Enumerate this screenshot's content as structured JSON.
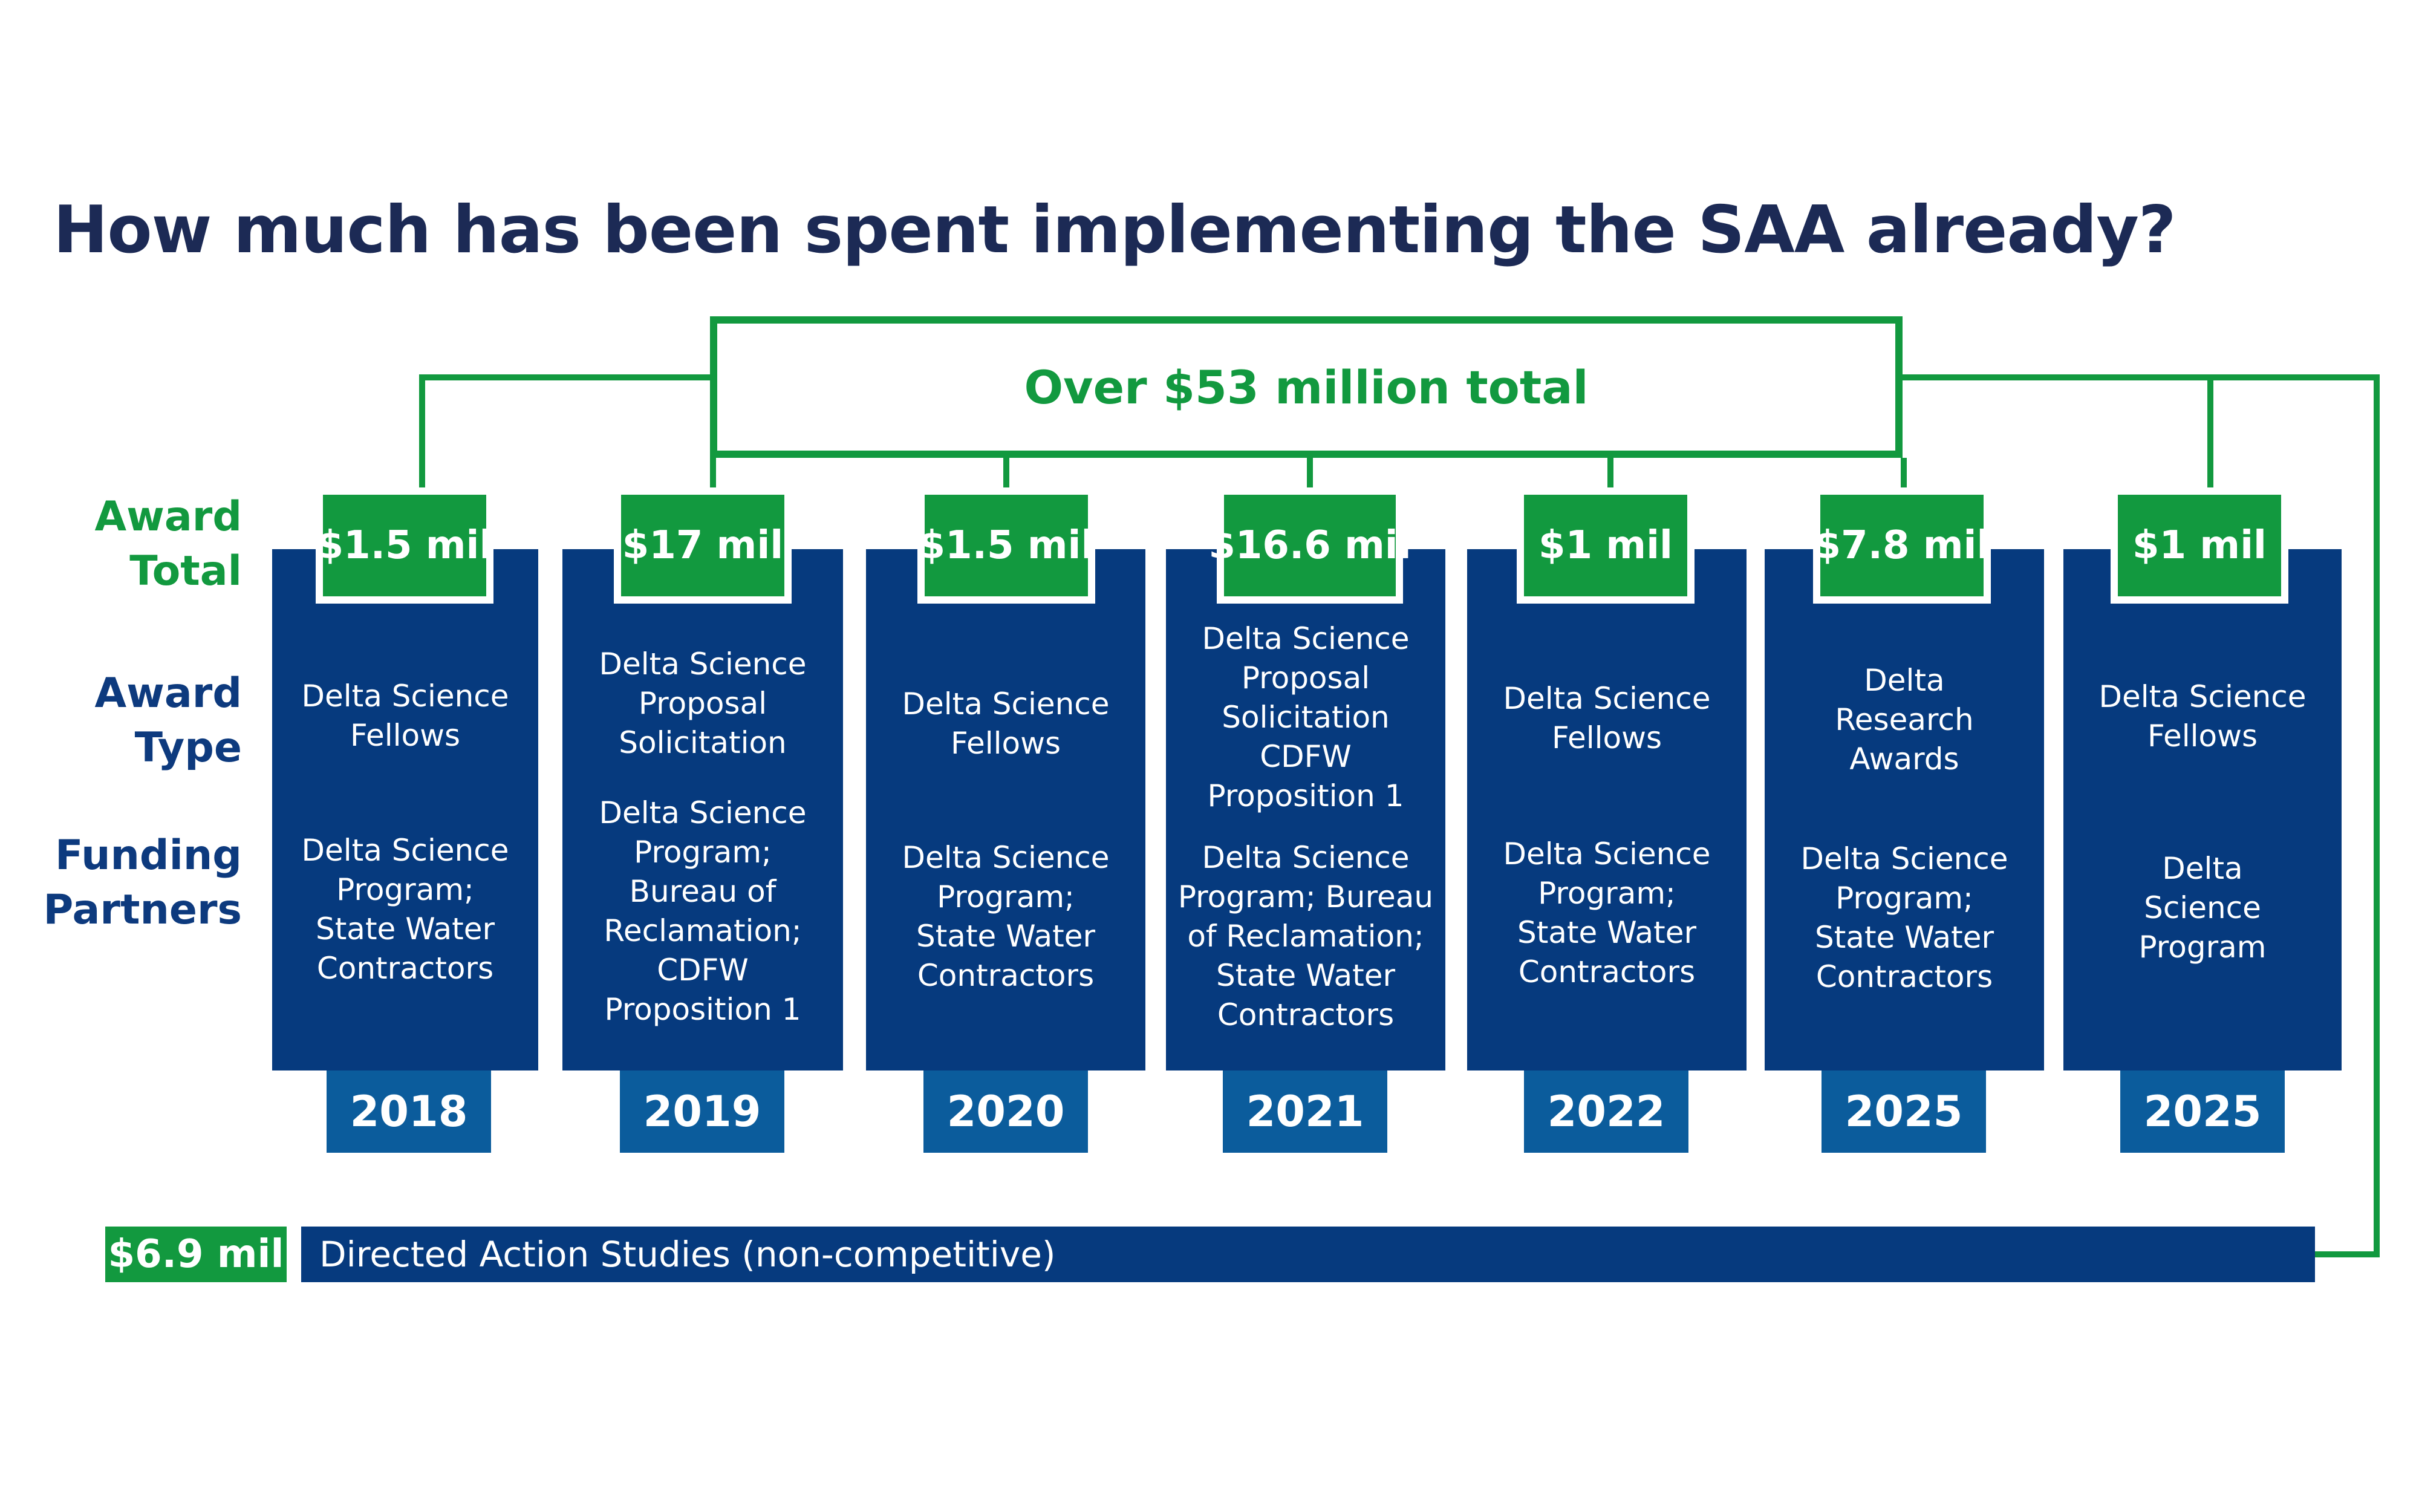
{
  "title": "How much has been spent implementing the SAA already?",
  "total": "Over $53 million total",
  "row_labels": {
    "award_total": "Award\nTotal",
    "award_type": "Award\nType",
    "funding_partners": "Funding\nPartners"
  },
  "columns": [
    {
      "amount": "$1.5 mil",
      "type": "Delta Science\nFellows",
      "partners": "Delta Science\nProgram;\nState Water\nContractors",
      "year": "2018"
    },
    {
      "amount": "$17 mil",
      "type": "Delta Science\nProposal\nSolicitation",
      "partners": "Delta Science\nProgram;\nBureau of\nReclamation;\nCDFW\nProposition 1",
      "year": "2019"
    },
    {
      "amount": "$1.5 mil",
      "type": "Delta Science\nFellows",
      "partners": "Delta Science\nProgram;\nState Water\nContractors",
      "year": "2020"
    },
    {
      "amount": "$16.6 mil",
      "type": "Delta Science\nProposal\nSolicitation\nCDFW\nProposition 1",
      "partners": "Delta Science\nProgram; Bureau\nof Reclamation;\nState Water\nContractors",
      "year": "2021"
    },
    {
      "amount": "$1 mil",
      "type": "Delta Science\nFellows",
      "partners": "Delta Science\nProgram;\nState Water\nContractors",
      "year": "2022"
    },
    {
      "amount": "$7.8 mil",
      "type": "Delta\nResearch\nAwards",
      "partners": "Delta Science\nProgram;\nState Water\nContractors",
      "year": "2025"
    },
    {
      "amount": "$1 mil",
      "type": "Delta Science\nFellows",
      "partners": "Delta\nScience\nProgram",
      "year": "2025"
    }
  ],
  "directed": {
    "amount": "$6.9 mil",
    "label": "Directed Action Studies (non-competitive)"
  },
  "colors": {
    "green": "#12993f",
    "navy": "#063a7e",
    "year_blue": "#0b5c9c",
    "title": "#1c2a55"
  }
}
